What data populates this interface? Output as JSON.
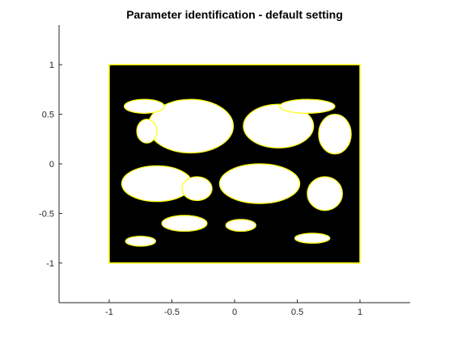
{
  "chart_data": {
    "type": "heatmap",
    "title": "Parameter identification - default setting",
    "xlabel": "",
    "ylabel": "",
    "xlim": [
      -1.4,
      1.4
    ],
    "ylim": [
      -1.4,
      1.4
    ],
    "xticks": [
      -1,
      -0.5,
      0,
      0.5,
      1
    ],
    "xtick_labels": [
      "-1",
      "-0.5",
      "0",
      "0.5",
      "1"
    ],
    "yticks": [
      -1,
      -0.5,
      0,
      0.5,
      1
    ],
    "ytick_labels": [
      "-1",
      "-0.5",
      "0",
      "0.5",
      "1"
    ],
    "grid": false,
    "legend": "none",
    "plot_region": {
      "x": [
        -1,
        1
      ],
      "y": [
        -1,
        1
      ]
    },
    "fill_color": "#000000",
    "boundary_color": "#ffff00",
    "background_color": "#ffffff",
    "white_regions": [
      {
        "cx": -0.35,
        "cy": 0.38,
        "rx": 0.34,
        "ry": 0.27
      },
      {
        "cx": 0.35,
        "cy": 0.38,
        "rx": 0.28,
        "ry": 0.22
      },
      {
        "cx": -0.72,
        "cy": 0.58,
        "rx": 0.16,
        "ry": 0.07
      },
      {
        "cx": 0.58,
        "cy": 0.58,
        "rx": 0.22,
        "ry": 0.07
      },
      {
        "cx": 0.8,
        "cy": 0.3,
        "rx": 0.13,
        "ry": 0.2
      },
      {
        "cx": -0.7,
        "cy": 0.33,
        "rx": 0.08,
        "ry": 0.12
      },
      {
        "cx": -0.62,
        "cy": -0.2,
        "rx": 0.28,
        "ry": 0.18
      },
      {
        "cx": 0.2,
        "cy": -0.2,
        "rx": 0.32,
        "ry": 0.2
      },
      {
        "cx": -0.3,
        "cy": -0.25,
        "rx": 0.12,
        "ry": 0.12
      },
      {
        "cx": 0.72,
        "cy": -0.3,
        "rx": 0.14,
        "ry": 0.17
      },
      {
        "cx": -0.4,
        "cy": -0.6,
        "rx": 0.18,
        "ry": 0.08
      },
      {
        "cx": -0.75,
        "cy": -0.78,
        "rx": 0.12,
        "ry": 0.05
      },
      {
        "cx": 0.62,
        "cy": -0.75,
        "rx": 0.14,
        "ry": 0.05
      },
      {
        "cx": 0.05,
        "cy": -0.62,
        "rx": 0.12,
        "ry": 0.06
      }
    ]
  }
}
